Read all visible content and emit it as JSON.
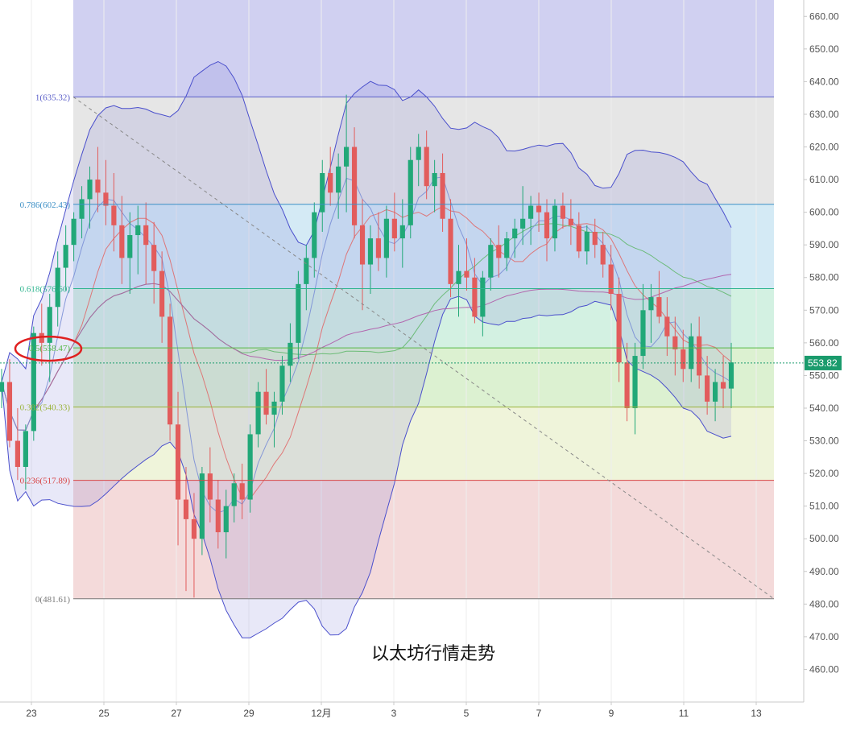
{
  "chart_data": {
    "type": "candlestick",
    "title": "以太坊行情走势",
    "y_axis": {
      "min": 450,
      "max": 665,
      "ticks": [
        460,
        470,
        480,
        490,
        500,
        510,
        520,
        530,
        540,
        550,
        560,
        570,
        580,
        590,
        600,
        610,
        620,
        630,
        640,
        650,
        660
      ],
      "tick_suffix": ".00",
      "position": "right"
    },
    "x_axis": {
      "ticks": [
        "23",
        "25",
        "27",
        "29",
        "12月",
        "3",
        "5",
        "7",
        "9",
        "11",
        "13"
      ]
    },
    "last_price": {
      "value": 553.82,
      "label": "553.82",
      "color": "#1a9b6c"
    },
    "fibonacci": {
      "levels": [
        {
          "ratio": "1",
          "price": 635.32,
          "label": "1(635.32)",
          "color": "#5a5ec8",
          "fill": "#c8c8ef"
        },
        {
          "ratio": "0.786",
          "price": 602.43,
          "label": "0.786(602.43)",
          "color": "#3c8fc6",
          "fill": "#e2e2e2"
        },
        {
          "ratio": "0.618",
          "price": 576.6,
          "label": "0.618(576.60)",
          "color": "#2fb58f",
          "fill": "#cde6f3"
        },
        {
          "ratio": "0.5",
          "price": 558.47,
          "label": "0.5(558.47)",
          "color": "#55b845",
          "fill": "#cbeedd"
        },
        {
          "ratio": "0.382",
          "price": 540.33,
          "label": "0.382(540.33)",
          "color": "#9ab33a",
          "fill": "#d6efc9"
        },
        {
          "ratio": "0.236",
          "price": 517.89,
          "label": "0.236(517.89)",
          "color": "#d84545",
          "fill": "#ecf2d3"
        },
        {
          "ratio": "0",
          "price": 481.61,
          "label": "0(481.61)",
          "color": "#777777",
          "fill": "#f2d3d3"
        }
      ],
      "trend_line": {
        "from": 635.32,
        "to": 481.61
      }
    },
    "colors": {
      "up": "#21a878",
      "down": "#e25c5c"
    },
    "annotation": {
      "type": "ellipse",
      "target": "0.5(558.47)",
      "color": "#e02020"
    },
    "candles": [
      [
        545,
        552,
        540,
        548
      ],
      [
        548,
        555,
        528,
        530
      ],
      [
        530,
        540,
        518,
        522
      ],
      [
        522,
        535,
        515,
        533
      ],
      [
        533,
        565,
        530,
        563
      ],
      [
        563,
        572,
        553,
        560
      ],
      [
        560,
        575,
        548,
        571
      ],
      [
        571,
        588,
        565,
        583
      ],
      [
        583,
        596,
        576,
        590
      ],
      [
        590,
        600,
        585,
        598
      ],
      [
        598,
        608,
        592,
        604
      ],
      [
        604,
        614,
        595,
        610
      ],
      [
        610,
        620,
        600,
        606
      ],
      [
        606,
        616,
        596,
        602
      ],
      [
        602,
        612,
        588,
        596
      ],
      [
        596,
        605,
        578,
        586
      ],
      [
        586,
        600,
        575,
        593
      ],
      [
        593,
        602,
        581,
        596
      ],
      [
        596,
        603,
        578,
        590
      ],
      [
        590,
        597,
        572,
        582
      ],
      [
        582,
        588,
        560,
        568
      ],
      [
        568,
        572,
        530,
        535
      ],
      [
        535,
        545,
        498,
        512
      ],
      [
        512,
        522,
        484,
        506
      ],
      [
        506,
        514,
        482,
        500
      ],
      [
        500,
        522,
        495,
        520
      ],
      [
        520,
        528,
        505,
        512
      ],
      [
        512,
        518,
        497,
        502
      ],
      [
        502,
        515,
        494,
        510
      ],
      [
        510,
        520,
        505,
        517
      ],
      [
        517,
        523,
        506,
        512
      ],
      [
        512,
        535,
        508,
        532
      ],
      [
        532,
        548,
        528,
        545
      ],
      [
        545,
        552,
        535,
        538
      ],
      [
        538,
        545,
        528,
        542
      ],
      [
        542,
        556,
        538,
        553
      ],
      [
        553,
        566,
        548,
        560
      ],
      [
        560,
        582,
        555,
        578
      ],
      [
        578,
        590,
        570,
        586
      ],
      [
        586,
        603,
        580,
        600
      ],
      [
        600,
        616,
        594,
        612
      ],
      [
        612,
        620,
        602,
        606
      ],
      [
        606,
        618,
        598,
        614
      ],
      [
        614,
        636,
        600,
        620
      ],
      [
        620,
        626,
        592,
        596
      ],
      [
        596,
        604,
        570,
        584
      ],
      [
        584,
        596,
        575,
        592
      ],
      [
        592,
        600,
        582,
        586
      ],
      [
        586,
        602,
        580,
        598
      ],
      [
        598,
        606,
        588,
        592
      ],
      [
        592,
        604,
        583,
        596
      ],
      [
        596,
        620,
        592,
        616
      ],
      [
        616,
        624,
        608,
        620
      ],
      [
        620,
        625,
        604,
        608
      ],
      [
        608,
        616,
        600,
        612
      ],
      [
        612,
        618,
        594,
        598
      ],
      [
        598,
        604,
        574,
        578
      ],
      [
        578,
        590,
        568,
        582
      ],
      [
        582,
        592,
        576,
        580
      ],
      [
        580,
        586,
        566,
        568
      ],
      [
        568,
        582,
        562,
        580
      ],
      [
        580,
        592,
        576,
        590
      ],
      [
        590,
        596,
        580,
        586
      ],
      [
        586,
        594,
        582,
        592
      ],
      [
        592,
        598,
        586,
        595
      ],
      [
        595,
        608,
        590,
        598
      ],
      [
        598,
        605,
        590,
        602
      ],
      [
        602,
        606,
        594,
        600
      ],
      [
        600,
        604,
        585,
        592
      ],
      [
        592,
        604,
        588,
        602
      ],
      [
        602,
        606,
        595,
        598
      ],
      [
        598,
        604,
        590,
        596
      ],
      [
        596,
        600,
        586,
        588
      ],
      [
        588,
        596,
        584,
        594
      ],
      [
        594,
        598,
        586,
        590
      ],
      [
        590,
        594,
        580,
        584
      ],
      [
        584,
        590,
        570,
        575
      ],
      [
        575,
        580,
        548,
        554
      ],
      [
        554,
        560,
        536,
        540
      ],
      [
        540,
        560,
        532,
        556
      ],
      [
        556,
        578,
        552,
        570
      ],
      [
        570,
        578,
        560,
        574
      ],
      [
        574,
        582,
        566,
        568
      ],
      [
        568,
        574,
        556,
        562
      ],
      [
        562,
        568,
        550,
        558
      ],
      [
        558,
        564,
        548,
        552
      ],
      [
        552,
        566,
        548,
        562
      ],
      [
        562,
        568,
        546,
        550
      ],
      [
        550,
        556,
        538,
        542
      ],
      [
        542,
        552,
        536,
        548
      ],
      [
        548,
        556,
        540,
        546
      ],
      [
        546,
        560,
        540,
        554
      ]
    ],
    "bollinger_color": "#4a4fcc",
    "ma_colors": [
      "#e06b6b",
      "#62b86d",
      "#b05aa8",
      "#7b8fd6"
    ]
  }
}
